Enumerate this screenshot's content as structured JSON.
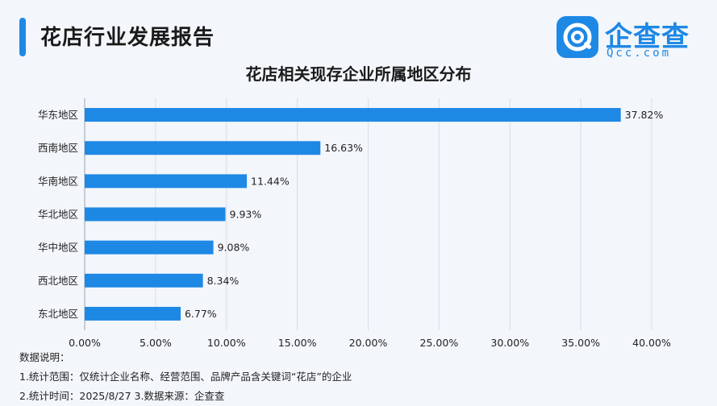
{
  "header": {
    "report_title": "花店行业发展报告",
    "logo_text": "企查查",
    "logo_sub": "Qcc.com"
  },
  "chart_data": {
    "type": "bar",
    "orientation": "horizontal",
    "title": "花店相关现存企业所属地区分布",
    "categories": [
      "华东地区",
      "西南地区",
      "华南地区",
      "华北地区",
      "华中地区",
      "西北地区",
      "东北地区"
    ],
    "values": [
      37.82,
      16.63,
      11.44,
      9.93,
      9.08,
      8.34,
      6.77
    ],
    "value_labels": [
      "37.82%",
      "16.63%",
      "11.44%",
      "9.93%",
      "9.08%",
      "8.34%",
      "6.77%"
    ],
    "xlim": [
      0,
      40
    ],
    "xticks": [
      0,
      5,
      10,
      15,
      20,
      25,
      30,
      35,
      40
    ],
    "xtick_labels": [
      "0.00%",
      "5.00%",
      "10.00%",
      "15.00%",
      "20.00%",
      "25.00%",
      "30.00%",
      "35.00%",
      "40.00%"
    ],
    "grid": "vertical",
    "bar_color": "#1e88e5"
  },
  "notes": {
    "heading": "数据说明：",
    "line1": "1.统计范围：仅统计企业名称、经营范围、品牌产品含关键词“花店”的企业",
    "line2": "2.统计时间：2025/8/27  3.数据来源：企查查"
  },
  "colors": {
    "accent": "#1e88e5",
    "grid": "#d9dde3"
  }
}
